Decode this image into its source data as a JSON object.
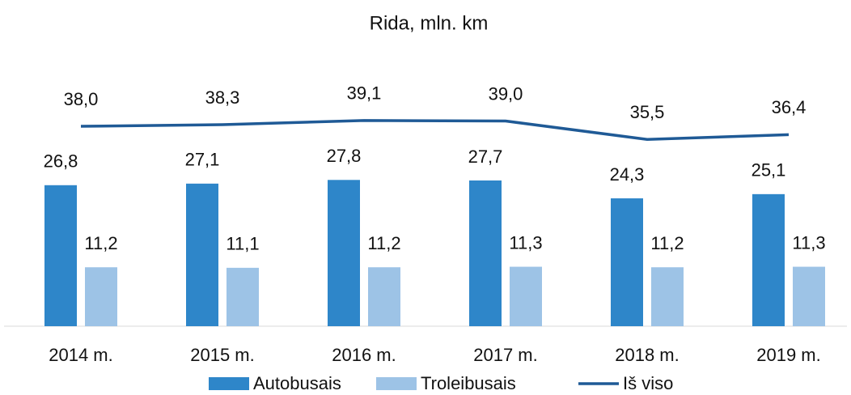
{
  "chart_data": {
    "type": "bar_line",
    "title": "Rida, mln. km",
    "categories": [
      "2014 m.",
      "2015 m.",
      "2016 m.",
      "2017 m.",
      "2018 m.",
      "2019 m."
    ],
    "series": [
      {
        "name": "Autobusais",
        "type": "bar",
        "color": "#2e86c9",
        "values": [
          26.8,
          27.1,
          27.8,
          27.7,
          24.3,
          25.1
        ],
        "value_labels": [
          "26,8",
          "27,1",
          "27,8",
          "27,7",
          "24,3",
          "25,1"
        ]
      },
      {
        "name": "Troleibusais",
        "type": "bar",
        "color": "#9dc3e6",
        "values": [
          11.2,
          11.1,
          11.2,
          11.3,
          11.2,
          11.3
        ],
        "value_labels": [
          "11,2",
          "11,1",
          "11,2",
          "11,3",
          "11,2",
          "11,3"
        ]
      },
      {
        "name": "Iš viso",
        "type": "line",
        "color": "#1f5a96",
        "values": [
          38.0,
          38.3,
          39.1,
          39.0,
          35.5,
          36.4
        ],
        "value_labels": [
          "38,0",
          "38,3",
          "39,1",
          "39,0",
          "35,5",
          "36,4"
        ]
      }
    ],
    "ylim": [
      0,
      50
    ]
  }
}
